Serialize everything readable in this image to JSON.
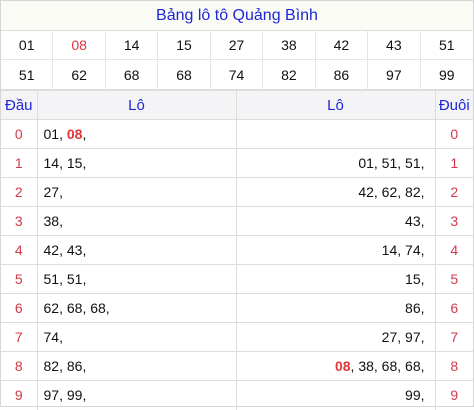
{
  "title": "Bảng lô tô Quảng Bình",
  "prizes": [
    {
      "value": "01",
      "special": false
    },
    {
      "value": "08",
      "special": true
    },
    {
      "value": "14",
      "special": false
    },
    {
      "value": "15",
      "special": false
    },
    {
      "value": "27",
      "special": false
    },
    {
      "value": "38",
      "special": false
    },
    {
      "value": "42",
      "special": false
    },
    {
      "value": "43",
      "special": false
    },
    {
      "value": "51",
      "special": false
    },
    {
      "value": "51",
      "special": false
    },
    {
      "value": "62",
      "special": false
    },
    {
      "value": "68",
      "special": false
    },
    {
      "value": "68",
      "special": false
    },
    {
      "value": "74",
      "special": false
    },
    {
      "value": "82",
      "special": false
    },
    {
      "value": "86",
      "special": false
    },
    {
      "value": "97",
      "special": false
    },
    {
      "value": "99",
      "special": false
    }
  ],
  "table": {
    "headers": {
      "head": "Đầu",
      "lo_left": "Lô",
      "lo_right": "Lô",
      "tail": "Đuôi"
    },
    "rows": [
      {
        "head": "0",
        "left": [
          {
            "v": "01",
            "s": false
          },
          {
            "v": "08",
            "s": true
          }
        ],
        "right": [],
        "tail": "0"
      },
      {
        "head": "1",
        "left": [
          {
            "v": "14",
            "s": false
          },
          {
            "v": "15",
            "s": false
          }
        ],
        "right": [
          {
            "v": "01",
            "s": false
          },
          {
            "v": "51",
            "s": false
          },
          {
            "v": "51",
            "s": false
          }
        ],
        "tail": "1"
      },
      {
        "head": "2",
        "left": [
          {
            "v": "27",
            "s": false
          }
        ],
        "right": [
          {
            "v": "42",
            "s": false
          },
          {
            "v": "62",
            "s": false
          },
          {
            "v": "82",
            "s": false
          }
        ],
        "tail": "2"
      },
      {
        "head": "3",
        "left": [
          {
            "v": "38",
            "s": false
          }
        ],
        "right": [
          {
            "v": "43",
            "s": false
          }
        ],
        "tail": "3"
      },
      {
        "head": "4",
        "left": [
          {
            "v": "42",
            "s": false
          },
          {
            "v": "43",
            "s": false
          }
        ],
        "right": [
          {
            "v": "14",
            "s": false
          },
          {
            "v": "74",
            "s": false
          }
        ],
        "tail": "4"
      },
      {
        "head": "5",
        "left": [
          {
            "v": "51",
            "s": false
          },
          {
            "v": "51",
            "s": false
          }
        ],
        "right": [
          {
            "v": "15",
            "s": false
          }
        ],
        "tail": "5"
      },
      {
        "head": "6",
        "left": [
          {
            "v": "62",
            "s": false
          },
          {
            "v": "68",
            "s": false
          },
          {
            "v": "68",
            "s": false
          }
        ],
        "right": [
          {
            "v": "86",
            "s": false
          }
        ],
        "tail": "6"
      },
      {
        "head": "7",
        "left": [
          {
            "v": "74",
            "s": false
          }
        ],
        "right": [
          {
            "v": "27",
            "s": false
          },
          {
            "v": "97",
            "s": false
          }
        ],
        "tail": "7"
      },
      {
        "head": "8",
        "left": [
          {
            "v": "82",
            "s": false
          },
          {
            "v": "86",
            "s": false
          }
        ],
        "right": [
          {
            "v": "08",
            "s": true
          },
          {
            "v": "38",
            "s": false
          },
          {
            "v": "68",
            "s": false
          },
          {
            "v": "68",
            "s": false
          }
        ],
        "tail": "8"
      },
      {
        "head": "9",
        "left": [
          {
            "v": "97",
            "s": false
          },
          {
            "v": "99",
            "s": false
          }
        ],
        "right": [
          {
            "v": "99",
            "s": false
          }
        ],
        "tail": "9"
      }
    ]
  },
  "colors": {
    "title_text": "#1d27d6",
    "header_text": "#1d27d6",
    "digit_text": "#d23a4a",
    "special_number": "#e2333b",
    "grid_line": "#dcdcdc"
  }
}
